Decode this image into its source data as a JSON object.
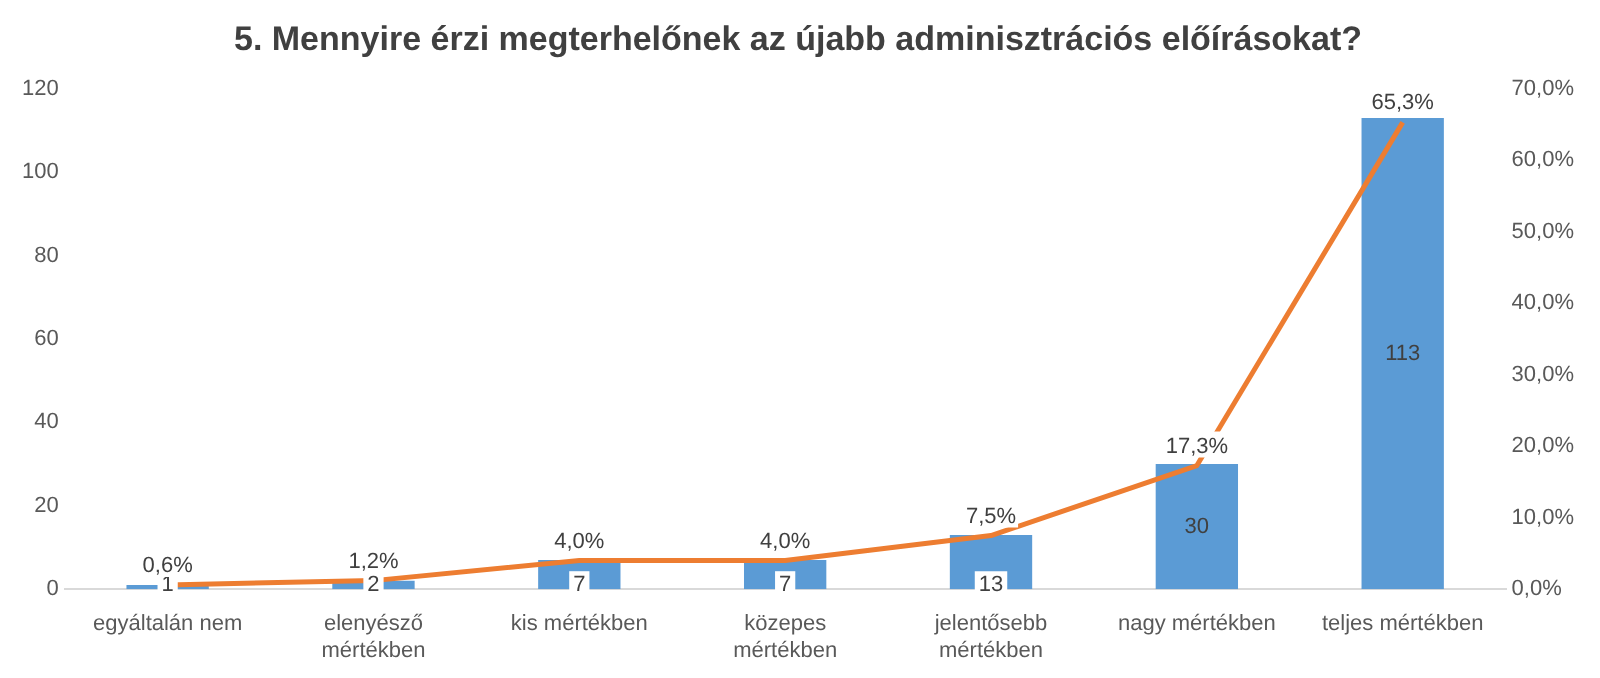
{
  "chart_data": {
    "type": "bar",
    "title": "5. Mennyire érzi megterhelőnek az újabb adminisztrációs előírásokat?",
    "categories": [
      "egyáltalán nem",
      "elenyésző mértékben",
      "kis mértékben",
      "közepes mértékben",
      "jelentősebb mértékben",
      "nagy mértékben",
      "teljes mértékben"
    ],
    "series": [
      {
        "color": "#5b9bd5",
        "values": [
          1,
          2,
          7,
          7,
          13,
          30,
          113
        ],
        "value_labels": [
          "1",
          "2",
          "7",
          "7",
          "13",
          "30",
          "113"
        ]
      },
      {
        "type": "line",
        "axis": "y2",
        "color": "#ed7d31",
        "marker": "none",
        "values": [
          0.6,
          1.2,
          4.0,
          4.0,
          7.5,
          17.3,
          65.3
        ],
        "value_labels": [
          "0,6%",
          "1,2%",
          "4,0%",
          "4,0%",
          "7,5%",
          "17,3%",
          "65,3%"
        ]
      }
    ],
    "ylim": [
      0,
      120
    ],
    "yticks": [
      0,
      20,
      40,
      60,
      80,
      100,
      120
    ],
    "y2lim": [
      0,
      70
    ],
    "y2ticks": [
      {
        "value": 0,
        "label": "0,0%"
      },
      {
        "value": 10,
        "label": "10,0%"
      },
      {
        "value": 20,
        "label": "20,0%"
      },
      {
        "value": 30,
        "label": "30,0%"
      },
      {
        "value": 40,
        "label": "40,0%"
      },
      {
        "value": 50,
        "label": "50,0%"
      },
      {
        "value": 60,
        "label": "60,0%"
      },
      {
        "value": 70,
        "label": "70,0%"
      }
    ],
    "legend": false
  }
}
